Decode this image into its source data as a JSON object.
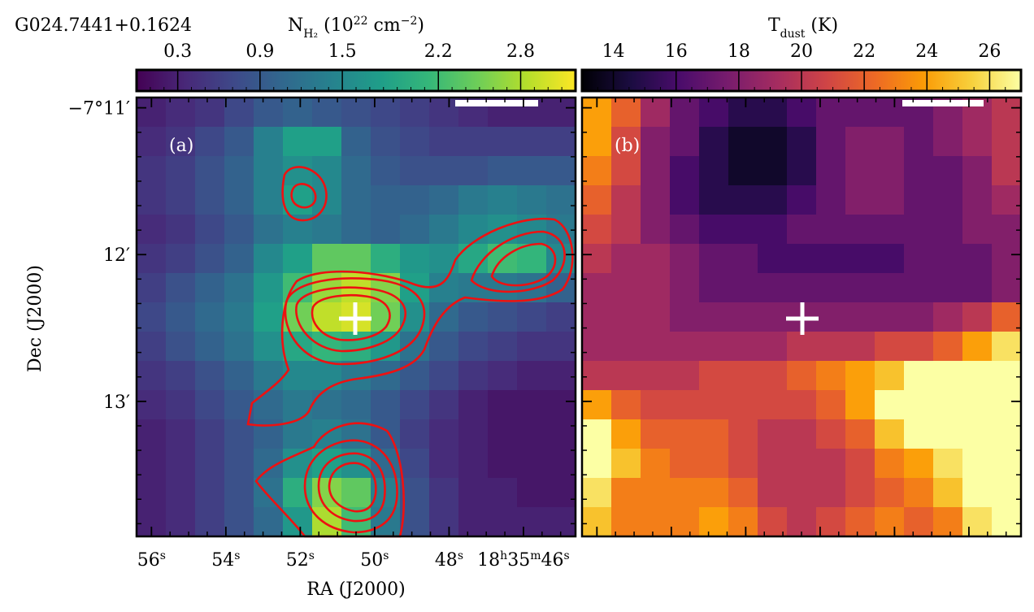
{
  "title": "G024.7441+0.1624",
  "chart_data": [
    {
      "type": "heatmap",
      "panel_label": "(a)",
      "colorbar_label": [
        "N",
        "H₂",
        " (10",
        "22",
        " cm",
        "−2",
        ")"
      ],
      "colormap": "viridis",
      "vlim": [
        0,
        3.2
      ],
      "cticks": [
        0.3,
        0.9,
        1.5,
        2.2,
        2.8
      ],
      "xlabel": "RA (J2000)",
      "ylabel": "Dec (J2000)",
      "xlim": [
        56.4,
        44.6
      ],
      "xticks": [
        {
          "value": 56,
          "label": [
            "56",
            "s"
          ]
        },
        {
          "value": 54,
          "label": [
            "54",
            "s"
          ]
        },
        {
          "value": 52,
          "label": [
            "52",
            "s"
          ]
        },
        {
          "value": 50,
          "label": [
            "50",
            "s"
          ]
        },
        {
          "value": 48,
          "label": [
            "48",
            "s"
          ]
        },
        {
          "value": 46,
          "label": [
            "18",
            "h",
            "35",
            "m",
            "46",
            "s"
          ]
        }
      ],
      "ylim": [
        10.93,
        13.92
      ],
      "yticks": [
        {
          "value": 11,
          "label": "−7°11′"
        },
        {
          "value": 12,
          "label": "12′"
        },
        {
          "value": 13,
          "label": "13′"
        }
      ],
      "values": [
        [
          0.3,
          0.4,
          0.5,
          0.7,
          0.9,
          1.0,
          0.9,
          0.8,
          0.7,
          0.6,
          0.5,
          0.4,
          0.3,
          0.3,
          0.3
        ],
        [
          0.4,
          0.5,
          0.7,
          0.9,
          1.4,
          1.8,
          1.8,
          1.0,
          0.8,
          0.7,
          0.6,
          0.6,
          0.6,
          0.6,
          0.6
        ],
        [
          0.5,
          0.6,
          0.8,
          1.0,
          1.4,
          1.6,
          1.5,
          1.1,
          0.9,
          0.8,
          0.8,
          0.8,
          0.9,
          0.9,
          0.9
        ],
        [
          0.5,
          0.6,
          0.8,
          1.0,
          1.4,
          1.8,
          1.5,
          1.1,
          1.0,
          1.0,
          1.1,
          1.3,
          1.4,
          1.3,
          1.2
        ],
        [
          0.4,
          0.5,
          0.7,
          0.9,
          1.2,
          1.4,
          1.3,
          1.1,
          1.0,
          1.1,
          1.3,
          1.5,
          1.6,
          1.5,
          1.3
        ],
        [
          0.5,
          0.6,
          0.8,
          1.0,
          1.5,
          1.8,
          2.4,
          2.4,
          2.0,
          1.7,
          1.6,
          1.9,
          2.2,
          2.1,
          1.5
        ],
        [
          0.6,
          0.8,
          1.0,
          1.2,
          1.7,
          2.2,
          2.7,
          2.9,
          2.6,
          1.8,
          1.4,
          1.3,
          1.3,
          1.2,
          1.0
        ],
        [
          0.7,
          0.9,
          1.1,
          1.3,
          1.8,
          2.5,
          2.9,
          3.0,
          2.5,
          1.6,
          1.1,
          0.9,
          0.8,
          0.7,
          0.6
        ],
        [
          0.6,
          0.8,
          1.0,
          1.2,
          1.6,
          1.9,
          2.1,
          2.0,
          1.7,
          1.2,
          0.9,
          0.7,
          0.6,
          0.5,
          0.5
        ],
        [
          0.5,
          0.6,
          0.8,
          1.0,
          1.3,
          1.5,
          1.5,
          1.3,
          1.1,
          0.9,
          0.7,
          0.5,
          0.4,
          0.3,
          0.3
        ],
        [
          0.4,
          0.5,
          0.7,
          0.9,
          1.1,
          1.3,
          1.2,
          1.1,
          0.9,
          0.7,
          0.5,
          0.3,
          0.2,
          0.2,
          0.2
        ],
        [
          0.3,
          0.4,
          0.6,
          0.8,
          1.0,
          1.3,
          1.4,
          1.2,
          0.9,
          0.6,
          0.4,
          0.3,
          0.2,
          0.2,
          0.2
        ],
        [
          0.3,
          0.4,
          0.6,
          0.8,
          1.1,
          1.6,
          1.8,
          1.6,
          1.1,
          0.7,
          0.4,
          0.3,
          0.2,
          0.2,
          0.2
        ],
        [
          0.3,
          0.4,
          0.6,
          0.8,
          1.2,
          2.0,
          2.6,
          2.4,
          1.4,
          0.8,
          0.5,
          0.3,
          0.3,
          0.2,
          0.2
        ],
        [
          0.3,
          0.4,
          0.6,
          0.8,
          1.1,
          1.7,
          2.8,
          2.2,
          1.3,
          0.8,
          0.5,
          0.3,
          0.3,
          0.3,
          0.3
        ]
      ]
    },
    {
      "type": "heatmap",
      "panel_label": "(b)",
      "colorbar_label": [
        "T",
        "dust",
        " (K)"
      ],
      "colormap": "inferno",
      "vlim": [
        13,
        27
      ],
      "cticks": [
        14,
        16,
        18,
        20,
        22,
        24,
        26
      ],
      "values": [
        [
          24,
          22,
          19,
          17,
          16,
          15,
          15,
          16,
          17,
          17,
          17,
          17,
          18,
          19,
          20
        ],
        [
          24,
          21,
          18,
          17,
          15,
          14,
          14,
          15,
          17,
          18,
          18,
          17,
          18,
          19,
          20
        ],
        [
          23,
          21,
          18,
          16,
          15,
          14,
          14,
          15,
          17,
          18,
          18,
          17,
          17,
          18,
          20
        ],
        [
          22,
          20,
          18,
          16,
          15,
          15,
          15,
          16,
          17,
          18,
          18,
          17,
          17,
          18,
          19
        ],
        [
          21,
          20,
          18,
          17,
          16,
          16,
          16,
          17,
          17,
          17,
          17,
          17,
          17,
          18,
          18
        ],
        [
          20,
          19,
          19,
          18,
          17,
          17,
          16,
          16,
          16,
          16,
          16,
          17,
          17,
          17,
          18
        ],
        [
          19,
          19,
          19,
          18,
          17,
          17,
          17,
          17,
          17,
          17,
          17,
          17,
          17,
          17,
          18
        ],
        [
          19,
          19,
          19,
          18,
          18,
          18,
          18,
          18,
          18,
          18,
          18,
          18,
          19,
          20,
          22
        ],
        [
          19,
          19,
          19,
          19,
          19,
          19,
          19,
          20,
          20,
          20,
          21,
          21,
          22,
          24,
          26
        ],
        [
          20,
          20,
          20,
          20,
          21,
          21,
          21,
          22,
          23,
          24,
          25,
          27,
          27,
          27,
          27
        ],
        [
          24,
          22,
          21,
          21,
          21,
          21,
          21,
          21,
          22,
          24,
          27,
          27,
          27,
          27,
          27
        ],
        [
          27,
          24,
          22,
          22,
          22,
          21,
          20,
          20,
          21,
          22,
          25,
          27,
          27,
          27,
          27
        ],
        [
          27,
          25,
          23,
          22,
          22,
          21,
          20,
          20,
          20,
          21,
          23,
          24,
          26,
          27,
          27
        ],
        [
          26,
          23,
          23,
          23,
          23,
          22,
          20,
          20,
          20,
          21,
          22,
          23,
          25,
          27,
          27
        ],
        [
          25,
          23,
          23,
          23,
          24,
          23,
          21,
          20,
          21,
          22,
          23,
          22,
          23,
          26,
          27
        ]
      ]
    }
  ]
}
